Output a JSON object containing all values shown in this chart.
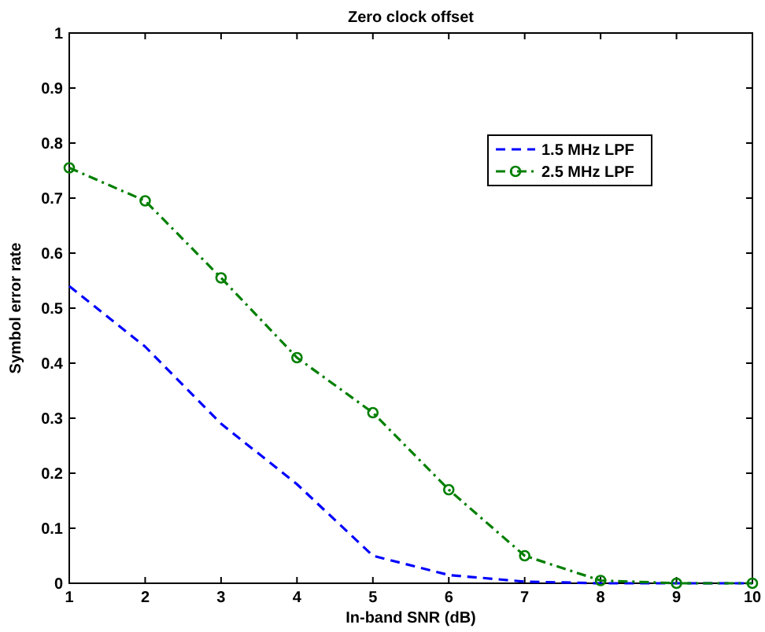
{
  "chart_data": {
    "type": "line",
    "title": "Zero clock offset",
    "xlabel": "In-band SNR (dB)",
    "ylabel": "Symbol error rate",
    "x": [
      1,
      2,
      3,
      4,
      5,
      6,
      7,
      8,
      9,
      10
    ],
    "series": [
      {
        "name": "1.5 MHz LPF",
        "color": "#0000ff",
        "line_style": "dashed",
        "marker": "none",
        "values": [
          0.54,
          0.43,
          0.29,
          0.18,
          0.05,
          0.015,
          0.003,
          0,
          0,
          0
        ]
      },
      {
        "name": "2.5 MHz LPF",
        "color": "#007f00",
        "line_style": "dashdot",
        "marker": "circle",
        "values": [
          0.755,
          0.695,
          0.555,
          0.41,
          0.31,
          0.17,
          0.05,
          0.005,
          0,
          0
        ]
      }
    ],
    "xlim": [
      1,
      10
    ],
    "ylim": [
      0,
      1
    ],
    "xticks": [
      1,
      2,
      3,
      4,
      5,
      6,
      7,
      8,
      9,
      10
    ],
    "yticks": [
      0,
      0.1,
      0.2,
      0.3,
      0.4,
      0.5,
      0.6,
      0.7,
      0.8,
      0.9,
      1
    ],
    "grid": false,
    "legend": "top right"
  }
}
